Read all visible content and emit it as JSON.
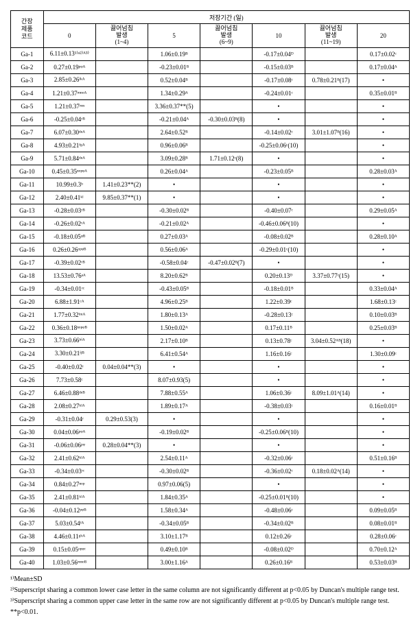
{
  "header": {
    "row_label": "간장\n제품\n코드",
    "group_label": "저장기간 (일)",
    "col_0": "0",
    "col_boil1": "끓어넘침\n발생\n(1~4)",
    "col_5": "5",
    "col_boil2": "끓어넘침\n발생\n(6~9)",
    "col_10": "10",
    "col_boil3": "끓어넘침\n발생\n(11~19)",
    "col_20": "20"
  },
  "rows": [
    {
      "code": "Ga-1",
      "c0": "6.11±0.13¹⁾ᵃ²⁾ᴬ³⁾",
      "b1": "",
      "c5": "1.06±0.19ᴮ",
      "b2": "",
      "c10": "-0.17±0.04ᴰ",
      "b3": "",
      "c20": "0.17±0.02ᶜ"
    },
    {
      "code": "Ga-2",
      "c0": "0.27±0.19ᵖᵠᴬ",
      "b1": "",
      "c5": "-0.23±0.01ᴮ",
      "b2": "",
      "c10": "-0.15±0.03ᴮ",
      "b3": "",
      "c20": "0.17±0.04ᴬ"
    },
    {
      "code": "Ga-3",
      "c0": "2.85±0.26ⁱᵏᴬ",
      "b1": "",
      "c5": "0.52±0.04ᴮ",
      "b2": "",
      "c10": "-0.17±0.08ᶜ",
      "b3": "0.78±0.21ᴮ(17)",
      "c20": "•"
    },
    {
      "code": "Ga-4",
      "c0": "1.21±0.37ᵐⁿᵒᴬ",
      "b1": "",
      "c5": "1.34±0.29ᴬ",
      "b2": "",
      "c10": "-0.24±0.01ᶜ",
      "b3": "",
      "c20": "0.35±0.01ᴮ"
    },
    {
      "code": "Ga-5",
      "c0": "1.21±0.37ᵐⁿ",
      "b1": "",
      "c5": "3.36±0.37**(5)",
      "b2": "",
      "c10": "•",
      "b3": "",
      "c20": "•"
    },
    {
      "code": "Ga-6",
      "c0": "-0.25±0.04ʳᴮ",
      "b1": "",
      "c5": "-0.21±0.04ᴬ",
      "b2": "-0.30±0.03ᴮ(8)",
      "c10": "•",
      "b3": "",
      "c20": "•"
    },
    {
      "code": "Ga-7",
      "c0": "6.07±0.30ᵈᵉᴬ",
      "b1": "",
      "c5": "2.64±0.52ᴮ",
      "b2": "",
      "c10": "-0.14±0.02ᶜ",
      "b3": "3.01±1.07ᴮ(16)",
      "c20": "•"
    },
    {
      "code": "Ga-8",
      "c0": "4.93±0.21ᶠᵍᴬ",
      "b1": "",
      "c5": "0.96±0.06ᴮ",
      "b2": "",
      "c10": "-0.25±0.06ᶜ(10)",
      "b3": "",
      "c20": "•"
    },
    {
      "code": "Ga-9",
      "c0": "5.71±0.84ᵈᵉᴬ",
      "b1": "",
      "c5": "3.09±0.28ᴮ",
      "b2": "1.71±0.12ᶜ(8)",
      "c10": "•",
      "b3": "",
      "c20": "•"
    },
    {
      "code": "Ga-10",
      "c0": "0.45±0.35ⁿᵒᵖᵠᴬ",
      "b1": "",
      "c5": "0.26±0.04ᴬ",
      "b2": "",
      "c10": "-0.23±0.05ᴮ",
      "b3": "",
      "c20": "0.28±0.03ᴬ"
    },
    {
      "code": "Ga-11",
      "c0": "10.99±0.3ᵇ",
      "b1": "1.41±0.23**(2)",
      "c5": "•",
      "b2": "",
      "c10": "•",
      "b3": "",
      "c20": "•"
    },
    {
      "code": "Ga-12",
      "c0": "2.40±0.41ᵏˡ",
      "b1": "9.85±0.37**(1)",
      "c5": "•",
      "b2": "",
      "c10": "•",
      "b3": "",
      "c20": "•"
    },
    {
      "code": "Ga-13",
      "c0": "-0.28±0.03ʳᴮ",
      "b1": "",
      "c5": "-0.30±0.02ᴮ",
      "b2": "",
      "c10": "-0.40±0.07ᶜ",
      "b3": "",
      "c20": "0.29±0.05ᴬ"
    },
    {
      "code": "Ga-14",
      "c0": "-0.26±0.02ʳᴬ",
      "b1": "",
      "c5": "-0.21±0.02ᴬ",
      "b2": "",
      "c10": "-0.46±0.06ᴮ(10)",
      "b3": "",
      "c20": "•"
    },
    {
      "code": "Ga-15",
      "c0": "-0.18±0.05ᵠᴮ",
      "b1": "",
      "c5": "0.27±0.03ᴬ",
      "b2": "",
      "c10": "-0.08±0.02ᴮ",
      "b3": "",
      "c20": "0.28±0.10ᴬ"
    },
    {
      "code": "Ga-16",
      "c0": "0.26±0.26ᵒᵖᵠᴮ",
      "b1": "",
      "c5": "0.56±0.06ᴬ",
      "b2": "",
      "c10": "-0.29±0.01ᶜ(10)",
      "b3": "",
      "c20": "•"
    },
    {
      "code": "Ga-17",
      "c0": "-0.39±0.02ʳᴮ",
      "b1": "",
      "c5": "-0.58±0.04ᶜ",
      "b2": "-0.47±0.02ᴮ(7)",
      "c10": "•",
      "b3": "",
      "c20": "•"
    },
    {
      "code": "Ga-18",
      "c0": "13.53±0.76ᵃᴬ",
      "b1": "",
      "c5": "8.20±0.62ᴮ",
      "b2": "",
      "c10": "0.20±0.13ᴰ",
      "b3": "3.37±0.77ᶜ(15)",
      "c20": "•"
    },
    {
      "code": "Ga-19",
      "c0": "-0.34±0.01ʳᶜ",
      "b1": "",
      "c5": "-0.43±0.05ᴮ",
      "b2": "",
      "c10": "-0.18±0.01ᴮ",
      "b3": "",
      "c20": "0.33±0.04ᴬ"
    },
    {
      "code": "Ga-20",
      "c0": "6.88±1.91ᶜᴬ",
      "b1": "",
      "c5": "4.96±0.25ᴮ",
      "b2": "",
      "c10": "1.22±0.39ᶜ",
      "b3": "",
      "c20": "1.68±0.13ᶜ"
    },
    {
      "code": "Ga-21",
      "c0": "1.77±0.32ˡᵐᴬ",
      "b1": "",
      "c5": "1.80±0.13ᴬ",
      "b2": "",
      "c10": "-0.28±0.13ᶜ",
      "b3": "",
      "c20": "0.10±0.03ᴮ"
    },
    {
      "code": "Ga-22",
      "c0": "0.36±0.18ⁿᵒᵖᵠᴮ",
      "b1": "",
      "c5": "1.50±0.02ᴬ",
      "b2": "",
      "c10": "0.17±0.11ᴮ",
      "b3": "",
      "c20": "0.25±0.03ᴮ"
    },
    {
      "code": "Ga-23",
      "c0": "3.73±0.66ʰⁱᴬ",
      "b1": "",
      "c5": "2.17±0.10ᴮ",
      "b2": "",
      "c10": "0.13±0.78ᶜ",
      "b3": "3.04±0.52ᴬᴮ(18)",
      "c20": "•"
    },
    {
      "code": "Ga-24",
      "c0": "3.30±0.21ⁱʲᴮ",
      "b1": "",
      "c5": "6.41±0.54ᴬ",
      "b2": "",
      "c10": "1.16±0.16ᶜ",
      "b3": "",
      "c20": "1.30±0.09ᶜ"
    },
    {
      "code": "Ga-25",
      "c0": "-0.40±0.02ʳ",
      "b1": "0.04±0.04**(3)",
      "c5": "•",
      "b2": "",
      "c10": "•",
      "b3": "",
      "c20": "•"
    },
    {
      "code": "Ga-26",
      "c0": "7.73±0.58ᶜ",
      "b1": "",
      "c5": "8.07±0.93(5)",
      "b2": "",
      "c10": "•",
      "b3": "",
      "c20": "•"
    },
    {
      "code": "Ga-27",
      "c0": "6.46±0.88ᵈᵉᴮ",
      "b1": "",
      "c5": "7.88±0.55ᴬ",
      "b2": "",
      "c10": "1.06±0.36ᶜ",
      "b3": "8.09±1.01ᴬ(14)",
      "c20": "•"
    },
    {
      "code": "Ga-28",
      "c0": "2.08±0.27ᵏˡᴬ",
      "b1": "",
      "c5": "1.89±0.17ᴬ",
      "b2": "",
      "c10": "-0.38±0.03ᶜ",
      "b3": "",
      "c20": "0.16±0.01ᴮ"
    },
    {
      "code": "Ga-29",
      "c0": "-0.31±0.04ʳ",
      "b1": "0.29±0.53(3)",
      "c5": "•",
      "b2": "",
      "c10": "•",
      "b3": "",
      "c20": "•"
    },
    {
      "code": "Ga-30",
      "c0": "0.04±0.06ᵖᵠᴬ",
      "b1": "",
      "c5": "-0.19±0.02ᴮ",
      "b2": "",
      "c10": "-0.25±0.06ᴮ(10)",
      "b3": "",
      "c20": "•"
    },
    {
      "code": "Ga-31",
      "c0": "-0.06±0.06ᵖᵠ",
      "b1": "0.28±0.04**(3)",
      "c5": "•",
      "b2": "",
      "c10": "•",
      "b3": "",
      "c20": "•"
    },
    {
      "code": "Ga-32",
      "c0": "2.41±0.62ᵏˡᴬ",
      "b1": "",
      "c5": "2.54±0.11ᴬ",
      "b2": "",
      "c10": "-0.32±0.06ᶜ",
      "b3": "",
      "c20": "0.51±0.16ᴮ"
    },
    {
      "code": "Ga-33",
      "c0": "-0.34±0.03ʳᶜ",
      "b1": "",
      "c5": "-0.30±0.02ᴮ",
      "b2": "",
      "c10": "-0.36±0.02ᶜ",
      "b3": "0.18±0.02ᴬ(14)",
      "c20": "•"
    },
    {
      "code": "Ga-34",
      "c0": "0.84±0.27ⁿᵒᵖ",
      "b1": "",
      "c5": "0.97±0.06(5)",
      "b2": "",
      "c10": "•",
      "b3": "",
      "c20": "•"
    },
    {
      "code": "Ga-35",
      "c0": "2.41±0.81ᵏˡᴬ",
      "b1": "",
      "c5": "1.84±0.35ᴬ",
      "b2": "",
      "c10": "-0.25±0.01ᴮ(10)",
      "b3": "",
      "c20": "•"
    },
    {
      "code": "Ga-36",
      "c0": "-0.04±0.12ᵖᵠᴮ",
      "b1": "",
      "c5": "1.58±0.34ᴬ",
      "b2": "",
      "c10": "-0.48±0.06ᶜ",
      "b3": "",
      "c20": "0.09±0.05ᴮ"
    },
    {
      "code": "Ga-37",
      "c0": "5.03±0.54ᶠᴬ",
      "b1": "",
      "c5": "-0.34±0.05ᴮ",
      "b2": "",
      "c10": "-0.34±0.02ᴮ",
      "b3": "",
      "c20": "0.08±0.01ᴮ"
    },
    {
      "code": "Ga-38",
      "c0": "4.46±0.11ᵍʰᴬ",
      "b1": "",
      "c5": "3.10±1.17ᴮ",
      "b2": "",
      "c10": "0.12±0.26ᶜ",
      "b3": "",
      "c20": "0.28±0.06ᶜ"
    },
    {
      "code": "Ga-39",
      "c0": "0.15±0.05ᵒᵖᵠᶜ",
      "b1": "",
      "c5": "0.49±0.10ᴮ",
      "b2": "",
      "c10": "-0.08±0.02ᴰ",
      "b3": "",
      "c20": "0.70±0.12ᴬ"
    },
    {
      "code": "Ga-40",
      "c0": "1.03±0.56ᵐⁿᵒᴮ",
      "b1": "",
      "c5": "3.00±1.16ᴬ",
      "b2": "",
      "c10": "0.26±0.16ᴮ",
      "b3": "",
      "c20": "0.53±0.03ᴮ"
    }
  ],
  "footnotes": {
    "f1": "¹⁾Mean±SD",
    "f2": "²⁾Superscript sharing a common lower case letter in the same column are not significantly different at p<0.05 by Duncan's multiple range test.",
    "f3": "³⁾Superscript sharing a common upper case letter in the same row are not significantly different at p<0.05 by Duncan's multiple range test.",
    "f4": "**p<0.01."
  }
}
